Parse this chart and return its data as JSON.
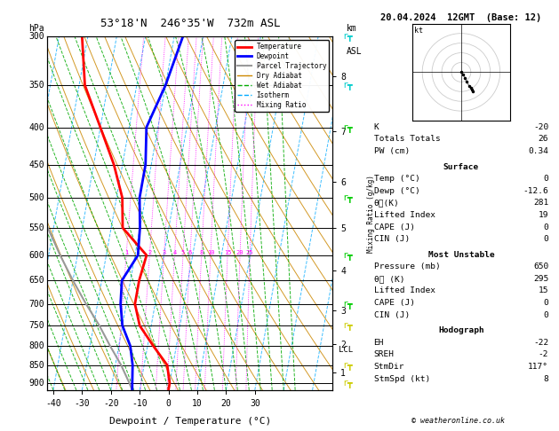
{
  "title": "53°18'N  246°35'W  732m ASL",
  "date_title": "20.04.2024  12GMT  (Base: 12)",
  "xlabel": "Dewpoint / Temperature (°C)",
  "ylabel_left": "hPa",
  "ylabel_right_label": "km\nASL",
  "pressure_levels": [
    300,
    350,
    400,
    450,
    500,
    550,
    600,
    650,
    700,
    750,
    800,
    850,
    900
  ],
  "temp_color": "#ff0000",
  "dewpoint_color": "#0000ff",
  "parcel_color": "#999999",
  "dry_adiabat_color": "#cc8800",
  "wet_adiabat_color": "#00aa00",
  "isotherm_color": "#00aaff",
  "mixing_ratio_color": "#ff00ff",
  "background_color": "#ffffff",
  "temp_data": [
    [
      920,
      0
    ],
    [
      900,
      0
    ],
    [
      850,
      -2
    ],
    [
      800,
      -8
    ],
    [
      750,
      -14
    ],
    [
      700,
      -17
    ],
    [
      650,
      -17
    ],
    [
      600,
      -16
    ],
    [
      550,
      -26
    ],
    [
      500,
      -28
    ],
    [
      450,
      -33
    ],
    [
      400,
      -40
    ],
    [
      350,
      -48
    ],
    [
      300,
      -52
    ]
  ],
  "dewpoint_data": [
    [
      920,
      -12.6
    ],
    [
      900,
      -13
    ],
    [
      850,
      -14
    ],
    [
      800,
      -16
    ],
    [
      750,
      -20
    ],
    [
      700,
      -22
    ],
    [
      650,
      -23
    ],
    [
      600,
      -19
    ],
    [
      550,
      -20
    ],
    [
      500,
      -22
    ],
    [
      450,
      -22
    ],
    [
      400,
      -24
    ],
    [
      350,
      -20
    ],
    [
      300,
      -17
    ]
  ],
  "parcel_data": [
    [
      920,
      -12.6
    ],
    [
      900,
      -14
    ],
    [
      850,
      -18
    ],
    [
      800,
      -23
    ],
    [
      750,
      -28
    ],
    [
      700,
      -34
    ],
    [
      650,
      -40
    ],
    [
      600,
      -46
    ],
    [
      550,
      -52
    ]
  ],
  "x_min": -42,
  "x_max": 35,
  "p_min": 300,
  "p_max": 920,
  "skew_factor": 22,
  "mixing_ratios": [
    1,
    2,
    3,
    4,
    5,
    6,
    8,
    10,
    15,
    20,
    25
  ],
  "km_ticks": [
    1,
    2,
    3,
    4,
    5,
    6,
    7,
    8
  ],
  "km_pressures": [
    870,
    795,
    715,
    630,
    550,
    475,
    405,
    340
  ],
  "lcl_pressure": 810,
  "lcl_label": "LCL",
  "x_tick_values": [
    -40,
    -30,
    -20,
    -10,
    0,
    10,
    20,
    30
  ],
  "info_lines_general": [
    [
      "K",
      "-20"
    ],
    [
      "Totals Totals",
      "26"
    ],
    [
      "PW (cm)",
      "0.34"
    ]
  ],
  "info_surface_header": "Surface",
  "info_surface": [
    [
      "Temp (°C)",
      "0"
    ],
    [
      "Dewp (°C)",
      "-12.6"
    ],
    [
      "θᴄ(K)",
      "281"
    ],
    [
      "Lifted Index",
      "19"
    ],
    [
      "CAPE (J)",
      "0"
    ],
    [
      "CIN (J)",
      "0"
    ]
  ],
  "info_unstable_header": "Most Unstable",
  "info_unstable": [
    [
      "Pressure (mb)",
      "650"
    ],
    [
      "θᴄ (K)",
      "295"
    ],
    [
      "Lifted Index",
      "15"
    ],
    [
      "CAPE (J)",
      "0"
    ],
    [
      "CIN (J)",
      "0"
    ]
  ],
  "info_hodo_header": "Hodograph",
  "info_hodo": [
    [
      "EH",
      "-22"
    ],
    [
      "SREH",
      "-2"
    ],
    [
      "StmDir",
      "117°"
    ],
    [
      "StmSpd (kt)",
      "8"
    ]
  ],
  "legend_entries": [
    {
      "label": "Temperature",
      "color": "#ff0000",
      "lw": 2,
      "ls": "-"
    },
    {
      "label": "Dewpoint",
      "color": "#0000ff",
      "lw": 2,
      "ls": "-"
    },
    {
      "label": "Parcel Trajectory",
      "color": "#999999",
      "lw": 1.5,
      "ls": "-"
    },
    {
      "label": "Dry Adiabat",
      "color": "#cc8800",
      "lw": 1,
      "ls": "-"
    },
    {
      "label": "Wet Adiabat",
      "color": "#00aa00",
      "lw": 1,
      "ls": "--"
    },
    {
      "label": "Isotherm",
      "color": "#00aaff",
      "lw": 1,
      "ls": "--"
    },
    {
      "label": "Mixing Ratio",
      "color": "#ff00ff",
      "lw": 1,
      "ls": ":"
    }
  ],
  "wind_barbs": [
    {
      "pressure": 300,
      "color": "#00cccc"
    },
    {
      "pressure": 350,
      "color": "#00cccc"
    },
    {
      "pressure": 400,
      "color": "#00cc00"
    },
    {
      "pressure": 500,
      "color": "#00cc00"
    },
    {
      "pressure": 600,
      "color": "#00cc00"
    },
    {
      "pressure": 700,
      "color": "#00cc00"
    },
    {
      "pressure": 750,
      "color": "#cccc00"
    },
    {
      "pressure": 850,
      "color": "#cccc00"
    },
    {
      "pressure": 900,
      "color": "#cccc00"
    }
  ]
}
